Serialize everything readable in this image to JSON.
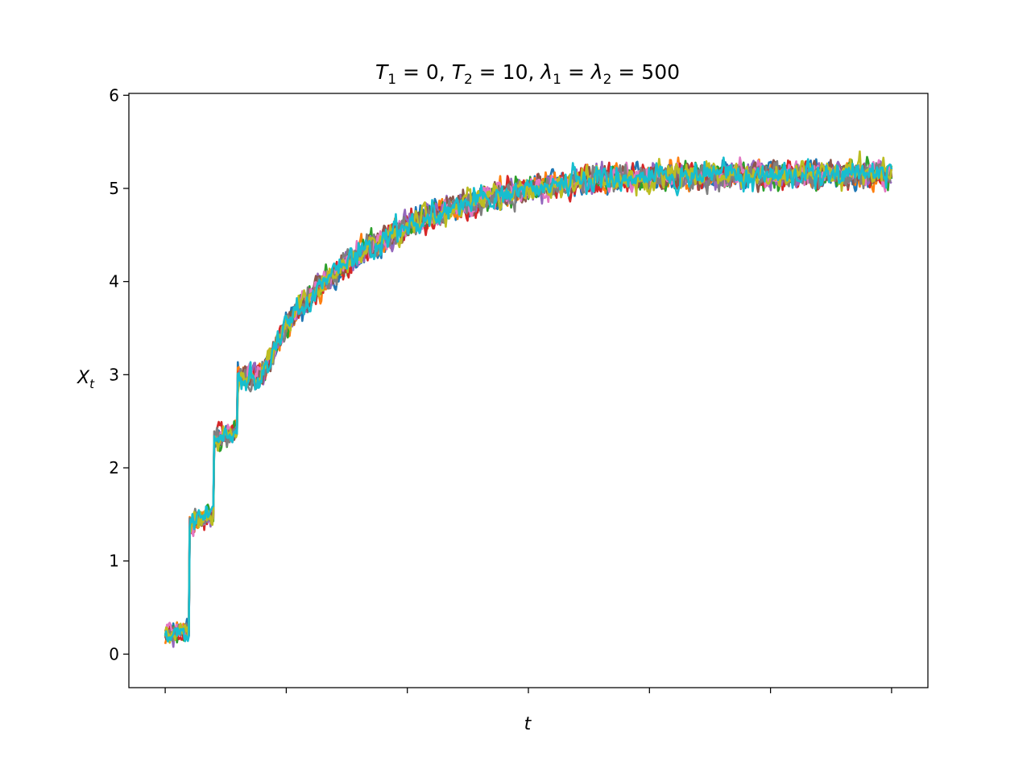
{
  "chart_data": {
    "type": "line",
    "title_parts": {
      "t1": "T",
      "t1_sub": "1",
      "t1_rest": " = 0, ",
      "t2": "T",
      "t2_sub": "2",
      "t2_rest": " = 10, ",
      "l1": "λ",
      "l1_sub": "1",
      "l1_rest": " = ",
      "l2": "λ",
      "l2_sub": "2",
      "l2_rest": " = 500"
    },
    "xlabel": "t",
    "ylabel_main": "X",
    "ylabel_sub": "t",
    "ylim": [
      -0.36,
      6.02
    ],
    "xlim": [
      -0.3,
      6.3
    ],
    "x_ticks": [
      0,
      1,
      2,
      3,
      4,
      5,
      6
    ],
    "x_tick_labels_shown": false,
    "y_ticks": [
      0,
      1,
      2,
      3,
      4,
      5,
      6
    ],
    "y_tick_labels": [
      "0",
      "1",
      "2",
      "3",
      "4",
      "5",
      "6"
    ],
    "grid": false,
    "legend": "none",
    "n_series": 10,
    "n_points": 800,
    "mean_path": [
      [
        0.0,
        0.2
      ],
      [
        0.2,
        0.25
      ],
      [
        0.2,
        1.4
      ],
      [
        0.4,
        1.5
      ],
      [
        0.4,
        2.3
      ],
      [
        0.6,
        2.4
      ],
      [
        0.6,
        2.95
      ],
      [
        0.8,
        3.0
      ],
      [
        1.0,
        3.55
      ],
      [
        1.2,
        3.85
      ],
      [
        1.4,
        4.1
      ],
      [
        1.6,
        4.3
      ],
      [
        2.0,
        4.6
      ],
      [
        2.5,
        4.85
      ],
      [
        3.0,
        5.0
      ],
      [
        3.5,
        5.08
      ],
      [
        4.0,
        5.12
      ],
      [
        5.0,
        5.15
      ],
      [
        6.0,
        5.15
      ]
    ],
    "colors": [
      "#1f77b4",
      "#ff7f0e",
      "#2ca02c",
      "#d62728",
      "#9467bd",
      "#8c564b",
      "#e377c2",
      "#7f7f7f",
      "#bcbd22",
      "#17becf"
    ]
  }
}
